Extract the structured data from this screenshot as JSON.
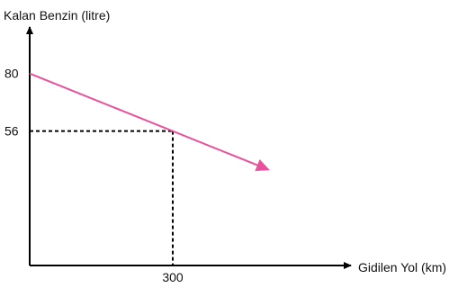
{
  "chart_data": {
    "type": "line",
    "title": "",
    "ylabel": "Kalan Benzin (litre)",
    "xlabel": "Gidilen Yol (km)",
    "y_ticks": [
      "80",
      "56"
    ],
    "x_ticks": [
      "300"
    ],
    "series": [
      {
        "points": [
          {
            "x": 0,
            "y": 80
          },
          {
            "x": 300,
            "y": 56
          },
          {
            "x": 500,
            "y": 40
          }
        ]
      }
    ],
    "reference_point": {
      "x": 300,
      "y": 56
    },
    "xlim": [
      0,
      650
    ],
    "ylim": [
      0,
      100
    ],
    "grid": false,
    "line_color": "#e8519b",
    "axis_color": "#000000"
  }
}
